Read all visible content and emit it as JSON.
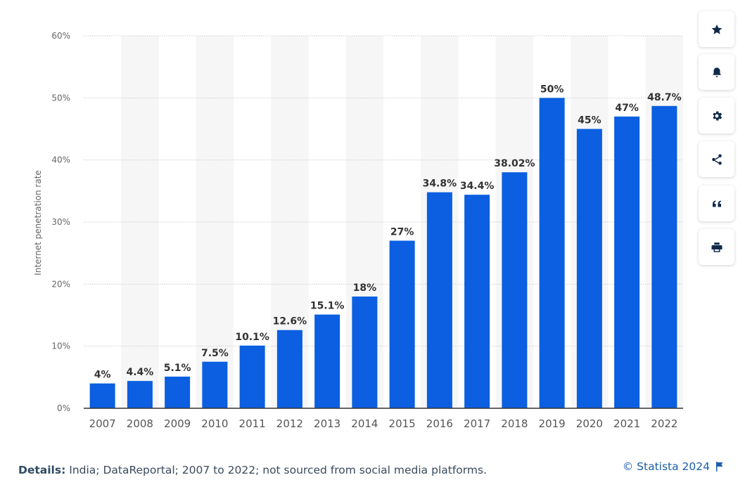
{
  "chart_data": {
    "type": "bar",
    "title": "",
    "xlabel": "",
    "ylabel": "Internet penetration rate",
    "ylim": [
      0,
      60
    ],
    "yticks": [
      "0%",
      "10%",
      "20%",
      "30%",
      "40%",
      "50%",
      "60%"
    ],
    "grid": true,
    "categories": [
      "2007",
      "2008",
      "2009",
      "2010",
      "2011",
      "2012",
      "2013",
      "2014",
      "2015",
      "2016",
      "2017",
      "2018",
      "2019",
      "2020",
      "2021",
      "2022"
    ],
    "values": [
      4,
      4.4,
      5.1,
      7.5,
      10.1,
      12.6,
      15.1,
      18,
      27,
      34.8,
      34.4,
      38.02,
      50,
      45,
      47,
      48.7
    ],
    "value_labels": [
      "4%",
      "4.4%",
      "5.1%",
      "7.5%",
      "10.1%",
      "12.6%",
      "15.1%",
      "18%",
      "27%",
      "34.8%",
      "34.4%",
      "38.02%",
      "50%",
      "45%",
      "47%",
      "48.7%"
    ],
    "bar_color": "#0b5fe0"
  },
  "footer": {
    "details_label": "Details:",
    "details_text": "India; DataReportal; 2007 to 2022; not sourced from social media platforms.",
    "copyright": "© Statista 2024"
  },
  "toolbar": {
    "buttons": [
      {
        "icon": "star-icon"
      },
      {
        "icon": "bell-icon"
      },
      {
        "icon": "gear-icon"
      },
      {
        "icon": "share-icon"
      },
      {
        "icon": "quote-icon"
      },
      {
        "icon": "print-icon"
      }
    ]
  }
}
